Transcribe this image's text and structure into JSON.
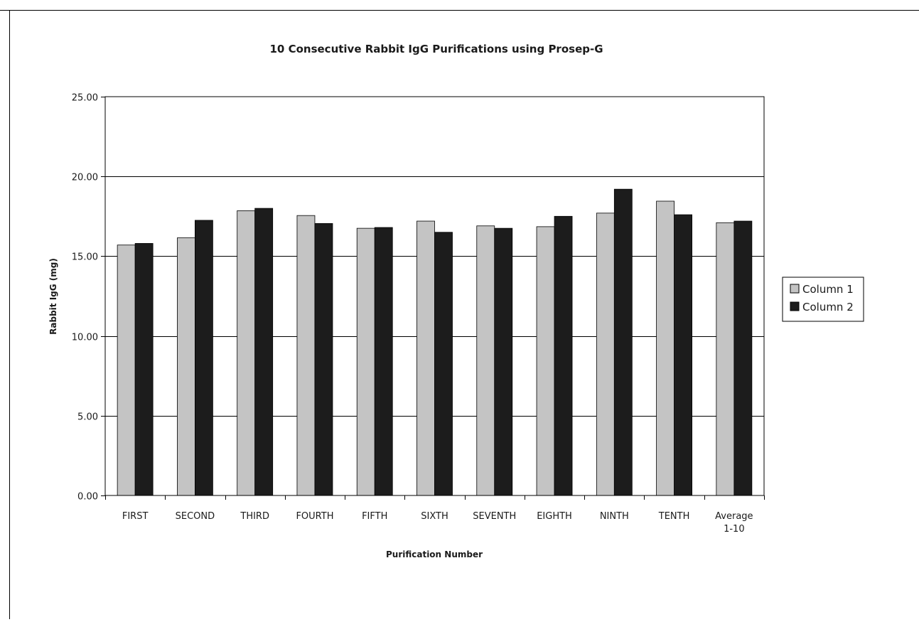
{
  "chart_data": {
    "type": "bar",
    "title": "10 Consecutive Rabbit IgG Purifications using Prosep-G",
    "xlabel": "Purification Number",
    "ylabel": "Rabbit IgG (mg)",
    "ylim": [
      0,
      25
    ],
    "yticks": [
      "0.00",
      "5.00",
      "10.00",
      "15.00",
      "20.00",
      "25.00"
    ],
    "categories": [
      [
        "FIRST"
      ],
      [
        "SECOND"
      ],
      [
        "THIRD"
      ],
      [
        "FOURTH"
      ],
      [
        "FIFTH"
      ],
      [
        "SIXTH"
      ],
      [
        "SEVENTH"
      ],
      [
        "EIGHTH"
      ],
      [
        "NINTH"
      ],
      [
        "TENTH"
      ],
      [
        "Average",
        "1-10"
      ]
    ],
    "series": [
      {
        "name": "Column 1",
        "color": "#c4c4c4",
        "values": [
          15.7,
          16.15,
          17.85,
          17.55,
          16.75,
          17.2,
          16.9,
          16.85,
          17.7,
          18.45,
          17.1
        ]
      },
      {
        "name": "Column 2",
        "color": "#1c1c1c",
        "values": [
          15.8,
          17.25,
          18.0,
          17.05,
          16.8,
          16.5,
          16.75,
          17.5,
          19.2,
          17.6,
          17.2
        ]
      }
    ],
    "grid": true,
    "legend_position": "right"
  }
}
